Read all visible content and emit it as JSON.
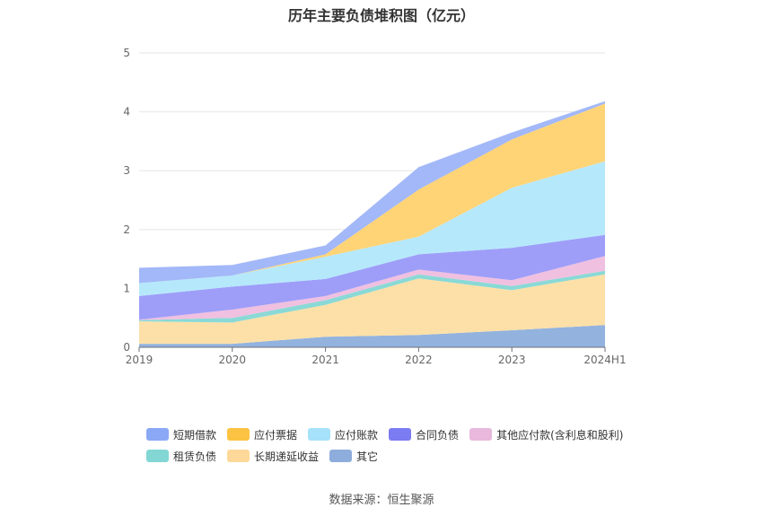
{
  "chart_data": {
    "type": "area",
    "stacked": true,
    "title": "历年主要负债堆积图（亿元）",
    "categories": [
      "2019",
      "2020",
      "2021",
      "2022",
      "2023",
      "2024H1"
    ],
    "ylim": [
      0,
      5
    ],
    "yticks": [
      0,
      1,
      2,
      3,
      4,
      5
    ],
    "grid": true,
    "legend_position": "bottom",
    "series": [
      {
        "name": "其它",
        "color": "#93b3de",
        "values": [
          0.06,
          0.06,
          0.18,
          0.21,
          0.29,
          0.38
        ]
      },
      {
        "name": "长期递延收益",
        "color": "#fde0a8",
        "values": [
          0.38,
          0.36,
          0.54,
          0.96,
          0.68,
          0.86
        ]
      },
      {
        "name": "租赁负债",
        "color": "#8ad9d6",
        "values": [
          0.02,
          0.08,
          0.08,
          0.07,
          0.07,
          0.06
        ]
      },
      {
        "name": "其他应付款(含利息和股利)",
        "color": "#f0c0e0",
        "values": [
          0.01,
          0.14,
          0.07,
          0.08,
          0.1,
          0.25
        ]
      },
      {
        "name": "合同负债",
        "color": "#9e9ef9",
        "values": [
          0.4,
          0.39,
          0.29,
          0.26,
          0.55,
          0.36
        ]
      },
      {
        "name": "应付账款",
        "color": "#b6e8fb",
        "values": [
          0.22,
          0.19,
          0.38,
          0.3,
          1.02,
          1.25
        ]
      },
      {
        "name": "应付票据",
        "color": "#ffd476",
        "values": [
          0.0,
          0.0,
          0.04,
          0.8,
          0.82,
          0.98
        ]
      },
      {
        "name": "短期借款",
        "color": "#a3b8f8",
        "values": [
          0.26,
          0.18,
          0.15,
          0.38,
          0.12,
          0.04
        ]
      }
    ]
  },
  "legend": {
    "rows": [
      [
        {
          "label": "短期借款",
          "color": "#8aa8f5"
        },
        {
          "label": "应付票据",
          "color": "#fcc342"
        },
        {
          "label": "应付账款",
          "color": "#a6e2fa"
        },
        {
          "label": "合同负债",
          "color": "#7b7bf2"
        },
        {
          "label": "其他应付款(含利息和股利)",
          "color": "#e9b8dc"
        }
      ],
      [
        {
          "label": "租赁负债",
          "color": "#82d7d4"
        },
        {
          "label": "长期递延收益",
          "color": "#fdd898"
        },
        {
          "label": "其它",
          "color": "#8eaddc"
        }
      ]
    ]
  },
  "footer": {
    "source": "数据来源：恒生聚源"
  }
}
